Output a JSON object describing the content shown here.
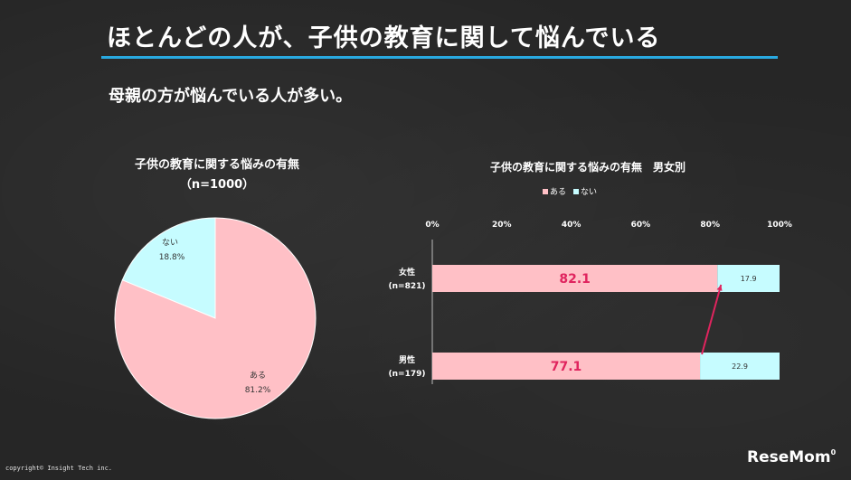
{
  "header": {
    "title": "ほとんどの人が、子供の教育に関して悩んでいる",
    "subtitle": "母親の方が悩んでいる人が多い。"
  },
  "footer": {
    "copyright": "copyright© Insight Tech inc.",
    "logo": "ReseMom",
    "page": "0"
  },
  "colors": {
    "aru": "#ffc0c6",
    "nai": "#c6fcff",
    "accent": "#29a9e0",
    "value_text": "#e0245e",
    "arrow": "#e0245e"
  },
  "chart_data": [
    {
      "type": "pie",
      "title_line1": "子供の教育に関する悩みの有無",
      "title_line2": "（n=1000）",
      "slices": [
        {
          "label": "ない",
          "value": 18.8,
          "value_label": "18.8%"
        },
        {
          "label": "ある",
          "value": 81.2,
          "value_label": "81.2%"
        }
      ]
    },
    {
      "type": "bar",
      "orientation": "horizontal",
      "stacked": true,
      "percent_scale": true,
      "title": "子供の教育に関する悩みの有無　男女別",
      "legend": [
        "ある",
        "ない"
      ],
      "legend_position": "top",
      "x_ticks": [
        "0%",
        "20%",
        "40%",
        "60%",
        "80%",
        "100%"
      ],
      "xlim": [
        0,
        100
      ],
      "categories": [
        {
          "line1": "女性",
          "line2": "(n=821)"
        },
        {
          "line1": "男性",
          "line2": "(n=179)"
        }
      ],
      "series": [
        {
          "name": "ある",
          "values": [
            82.1,
            77.1
          ],
          "labels": [
            "82.1",
            "77.1"
          ]
        },
        {
          "name": "ない",
          "values": [
            17.9,
            22.9
          ],
          "labels": [
            "17.9",
            "22.9"
          ]
        }
      ]
    }
  ]
}
